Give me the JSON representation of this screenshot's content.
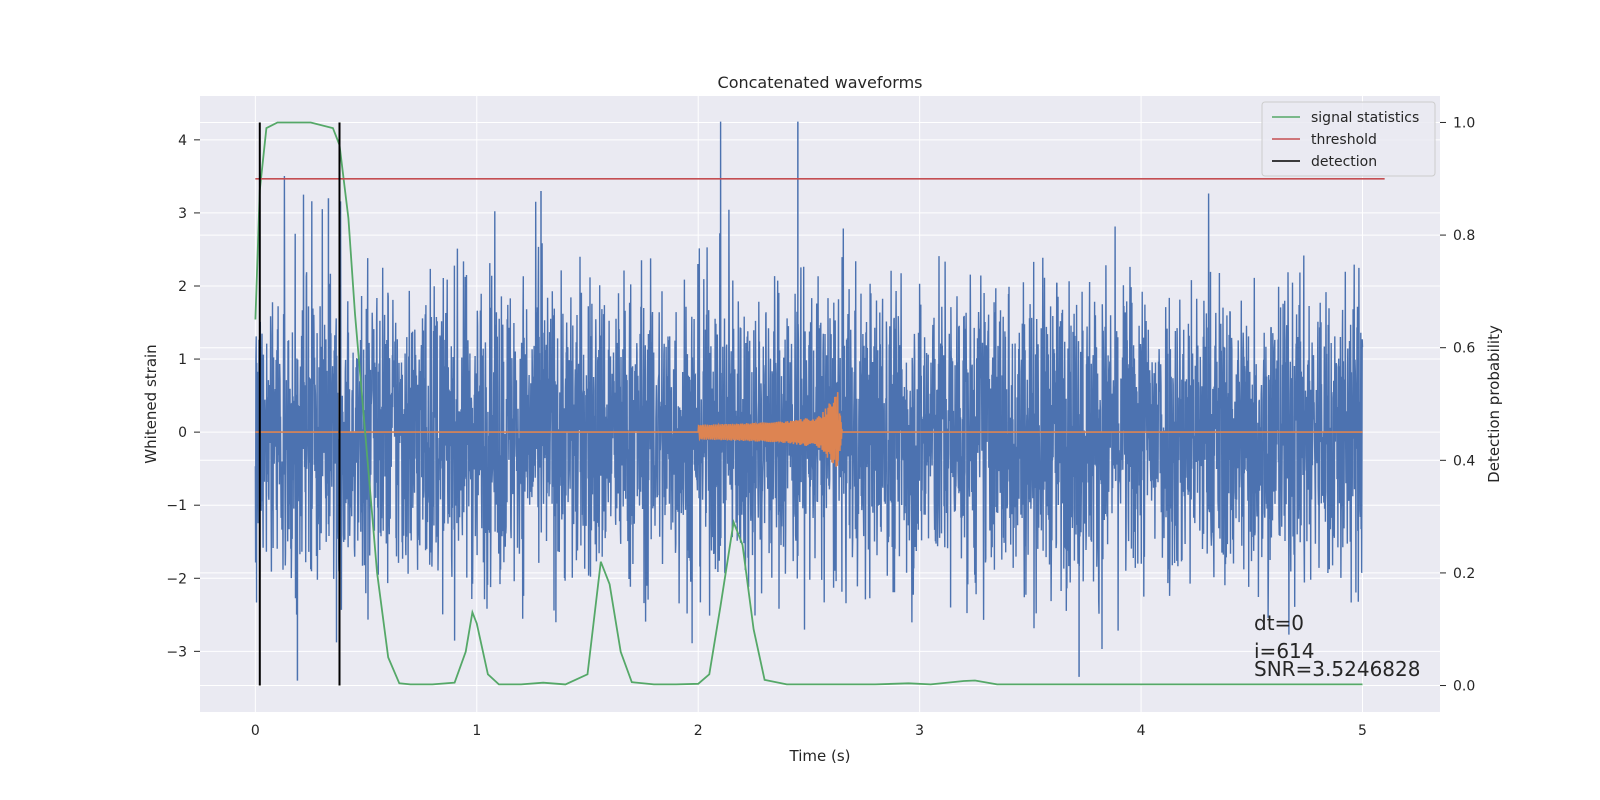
{
  "chart_data": {
    "type": "line",
    "title": "Concatenated waveforms",
    "xlabel": "Time (s)",
    "ylabel": "Whitened strain",
    "y2label": "Detection probability",
    "xlim": [
      -0.25,
      5.35
    ],
    "ylim": [
      -3.83,
      4.6
    ],
    "y2lim": [
      -0.047,
      1.047
    ],
    "x_ticks": [
      0,
      1,
      2,
      3,
      4,
      5
    ],
    "y_ticks": [
      -3,
      -2,
      -1,
      0,
      1,
      2,
      3,
      4
    ],
    "y2_ticks": [
      0.0,
      0.2,
      0.4,
      0.6,
      0.8,
      1.0
    ],
    "grid": true,
    "legend_position": "top-right",
    "colors": {
      "whitened_strain": "#4c72b0",
      "injected_signal": "#dd8452",
      "signal_statistics": "#55a868",
      "threshold": "#c44e52",
      "detection": "#000000",
      "plot_bg": "#eaeaf2",
      "grid": "#ffffff"
    },
    "series": [
      {
        "name": "signal statistics",
        "axis": "right",
        "x": [
          0.0,
          0.02,
          0.05,
          0.1,
          0.15,
          0.25,
          0.35,
          0.38,
          0.42,
          0.45,
          0.5,
          0.55,
          0.6,
          0.65,
          0.7,
          0.8,
          0.9,
          0.95,
          0.98,
          1.0,
          1.05,
          1.1,
          1.2,
          1.3,
          1.4,
          1.5,
          1.56,
          1.6,
          1.65,
          1.7,
          1.8,
          1.9,
          2.0,
          2.05,
          2.1,
          2.16,
          2.2,
          2.25,
          2.3,
          2.4,
          2.6,
          2.8,
          2.95,
          3.05,
          3.2,
          3.25,
          3.35,
          3.5,
          4.0,
          4.5,
          5.0
        ],
        "values": [
          0.65,
          0.88,
          0.99,
          1.0,
          1.0,
          1.0,
          0.99,
          0.96,
          0.83,
          0.66,
          0.43,
          0.2,
          0.05,
          0.004,
          0.002,
          0.002,
          0.005,
          0.06,
          0.13,
          0.11,
          0.02,
          0.002,
          0.002,
          0.005,
          0.002,
          0.02,
          0.22,
          0.18,
          0.06,
          0.006,
          0.002,
          0.002,
          0.003,
          0.02,
          0.14,
          0.29,
          0.25,
          0.1,
          0.01,
          0.002,
          0.002,
          0.002,
          0.004,
          0.002,
          0.008,
          0.009,
          0.002,
          0.002,
          0.002,
          0.002,
          0.002
        ]
      },
      {
        "name": "threshold",
        "axis": "right",
        "x": [
          0.0,
          5.1
        ],
        "values": [
          0.9,
          0.9
        ]
      },
      {
        "name": "detection",
        "axis": "right",
        "x": [
          0.02,
          0.38
        ],
        "values": [
          1.0,
          1.0
        ]
      }
    ],
    "injected_signal": {
      "x": [
        0.0,
        1.99,
        2.0,
        2.2,
        2.4,
        2.55,
        2.63,
        2.65,
        2.66,
        5.0
      ],
      "amplitude": [
        0.0,
        0.0,
        0.1,
        0.12,
        0.15,
        0.22,
        0.55,
        0.0,
        0.0,
        0.0
      ]
    },
    "whitened_strain": {
      "x_range": [
        0.0,
        5.0
      ],
      "typical_range": [
        -2.0,
        2.0
      ],
      "max": 4.25,
      "min": -3.4
    },
    "annotations": [
      "dt=0",
      "i=614",
      "SNR=3.5246828"
    ]
  }
}
